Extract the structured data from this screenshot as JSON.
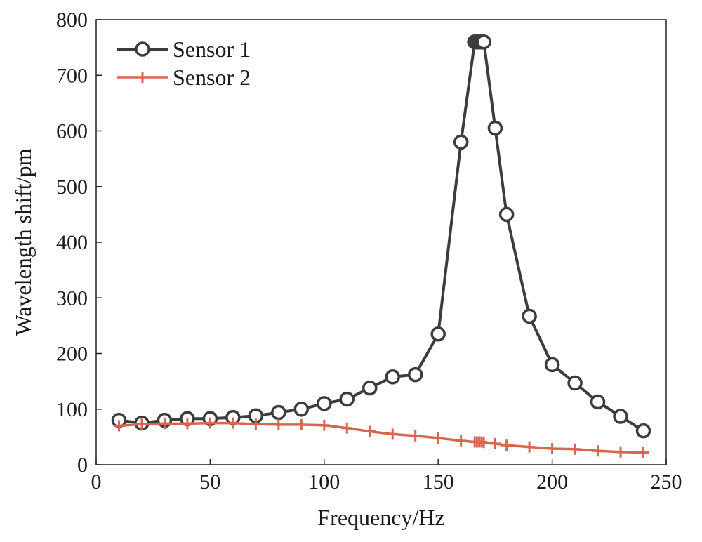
{
  "chart_data": {
    "type": "line",
    "title": "",
    "xlabel": "Frequency/Hz",
    "ylabel": "Wavelength shift/pm",
    "xlim": [
      0,
      250
    ],
    "ylim": [
      0,
      800
    ],
    "xticks": [
      0,
      50,
      100,
      150,
      200,
      250
    ],
    "yticks": [
      0,
      100,
      200,
      300,
      400,
      500,
      600,
      700,
      800
    ],
    "grid": false,
    "legend_position": "top-left",
    "series": [
      {
        "name": "Sensor 1",
        "color": "#3a3d40",
        "marker": "circle",
        "x": [
          10,
          20,
          30,
          40,
          50,
          60,
          70,
          80,
          90,
          100,
          110,
          120,
          130,
          140,
          150,
          160,
          166,
          167,
          168,
          169,
          170,
          175,
          180,
          190,
          200,
          210,
          220,
          230,
          240
        ],
        "y": [
          80,
          75,
          80,
          83,
          83,
          85,
          88,
          94,
          100,
          110,
          118,
          138,
          158,
          162,
          235,
          580,
          760,
          760,
          760,
          760,
          760,
          605,
          450,
          267,
          180,
          147,
          113,
          87,
          61
        ]
      },
      {
        "name": "Sensor 2",
        "color": "#d9654f",
        "marker": "plus",
        "x": [
          10,
          20,
          30,
          40,
          50,
          60,
          70,
          80,
          90,
          100,
          110,
          120,
          130,
          140,
          150,
          160,
          166,
          167,
          168,
          169,
          170,
          175,
          180,
          190,
          200,
          210,
          220,
          230,
          240
        ],
        "y": [
          70,
          73,
          74,
          74,
          75,
          75,
          73,
          72,
          72,
          71,
          66,
          60,
          55,
          52,
          48,
          43,
          41,
          41,
          41,
          41,
          40,
          38,
          35,
          32,
          29,
          28,
          25,
          23,
          22
        ]
      }
    ]
  }
}
